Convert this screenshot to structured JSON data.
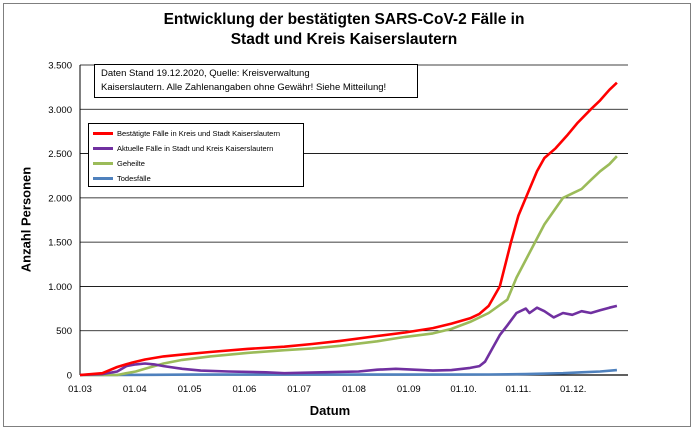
{
  "chart_data": {
    "type": "line",
    "title": "Entwicklung der bestätigten SARS-CoV-2 Fälle in\nStadt und Kreis Kaiserslautern",
    "xlabel": "Datum",
    "ylabel": "Anzahl Personen",
    "ylim": [
      0,
      3500
    ],
    "y_ticks": [
      0,
      500,
      1000,
      1500,
      2000,
      2500,
      3000,
      3500
    ],
    "y_tick_labels": [
      "0",
      "500",
      "1.000",
      "1.500",
      "2.000",
      "2.500",
      "3.000",
      "3.500"
    ],
    "x_tick_labels": [
      "01.03",
      "01.04",
      "01.05",
      "01.06",
      "01.07",
      "01.08",
      "01.09",
      "01.10.",
      "01.11.",
      "01.12."
    ],
    "xlim_days": [
      0,
      295
    ],
    "grid": "horizontal",
    "legend_position": "top-left",
    "note": "Daten Stand 19.12.2020, Quelle: Kreisverwaltung\nKaiserslautern. Alle Zahlenangaben ohne Gewähr! Siehe Mitteilung!",
    "series": [
      {
        "name": "Bestätigte Fälle in Kreis und Stadt Kaiserslautern",
        "color": "#ff0000",
        "x_days": [
          0,
          12,
          20,
          28,
          35,
          45,
          55,
          70,
          90,
          110,
          125,
          140,
          160,
          175,
          190,
          200,
          210,
          215,
          220,
          226,
          232,
          236,
          240,
          246,
          250,
          256,
          262,
          268,
          275,
          280,
          285,
          289
        ],
        "values": [
          0,
          20,
          90,
          140,
          175,
          210,
          230,
          260,
          295,
          320,
          350,
          385,
          440,
          480,
          530,
          580,
          640,
          690,
          780,
          1000,
          1500,
          1800,
          2000,
          2300,
          2450,
          2560,
          2700,
          2850,
          3000,
          3100,
          3220,
          3300
        ]
      },
      {
        "name": "Aktuelle Fälle in Stadt und Kreis Kaiserslautern",
        "color": "#7030a0",
        "x_days": [
          0,
          12,
          20,
          25,
          30,
          35,
          40,
          45,
          55,
          65,
          80,
          100,
          110,
          130,
          150,
          160,
          170,
          180,
          190,
          200,
          210,
          215,
          218,
          222,
          226,
          230,
          235,
          240,
          242,
          246,
          250,
          255,
          260,
          265,
          270,
          275,
          280,
          285,
          289
        ],
        "values": [
          0,
          10,
          40,
          100,
          120,
          130,
          120,
          100,
          70,
          50,
          40,
          30,
          20,
          30,
          40,
          60,
          70,
          60,
          50,
          55,
          80,
          100,
          150,
          300,
          450,
          560,
          700,
          750,
          700,
          760,
          720,
          650,
          700,
          680,
          720,
          700,
          730,
          760,
          780
        ]
      },
      {
        "name": "Geheilte",
        "color": "#9bbb59",
        "x_days": [
          0,
          20,
          25,
          30,
          35,
          40,
          45,
          55,
          70,
          90,
          110,
          125,
          140,
          160,
          175,
          190,
          200,
          210,
          220,
          230,
          235,
          240,
          245,
          250,
          255,
          260,
          265,
          270,
          275,
          280,
          285,
          289
        ],
        "values": [
          0,
          0,
          20,
          40,
          70,
          100,
          130,
          170,
          210,
          250,
          280,
          300,
          330,
          380,
          430,
          470,
          520,
          600,
          700,
          850,
          1100,
          1300,
          1500,
          1700,
          1850,
          2000,
          2050,
          2100,
          2200,
          2300,
          2380,
          2470
        ]
      },
      {
        "name": "Todesfälle",
        "color": "#4f81bd",
        "x_days": [
          0,
          20,
          40,
          60,
          80,
          100,
          120,
          140,
          160,
          180,
          200,
          220,
          240,
          260,
          270,
          280,
          289
        ],
        "values": [
          0,
          0,
          2,
          4,
          5,
          5,
          5,
          5,
          5,
          5,
          5,
          6,
          10,
          20,
          30,
          40,
          55
        ]
      }
    ]
  }
}
